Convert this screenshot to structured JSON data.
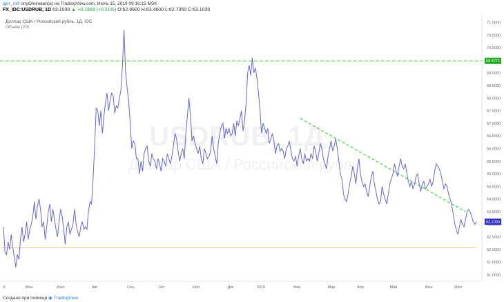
{
  "header": {
    "publisher": "igor_milf",
    "published_text": "опубликовал(а) на TradingView.com, Июль 15, 2019 09:16:15 MSK",
    "symbol": "FX_IDC:USDRUB, 1D",
    "price": "63.1030",
    "change": "▲ +0.1969 (+0.31%)",
    "ohlc": "O:62.9900 H:63.4600 L:62.7350 C:63.1030",
    "instrument_name": "Доллар США / Российский рубль, 1Д, IDC",
    "volume_label": "Объём (20)"
  },
  "watermark": {
    "line1": "USDRUB, 1Д",
    "line2": "Доллар США / Российский рубль"
  },
  "footer": {
    "created_with": "Создано при помощи",
    "brand": "TradingView"
  },
  "colors": {
    "price_line": "#6666cc",
    "resistance": "#22cc22",
    "trend": "#33dd33",
    "support": "#f0c068",
    "last_badge": "#3030c0",
    "res_badge": "#22aa22"
  },
  "chart_data": {
    "type": "line",
    "title": "Доллар США / Российский рубль, 1Д, IDC",
    "x_ticks": [
      "9",
      "Июн",
      "Июл",
      "Авг",
      "Сен",
      "Окт",
      "Ноя",
      "Дек",
      "2019",
      "Фев",
      "Мар",
      "Апр",
      "Май",
      "Июн",
      "Июл"
    ],
    "y_ticks": [
      "61.0000",
      "61.5000",
      "62.0000",
      "62.5000",
      "63.0000",
      "63.5000",
      "64.0000",
      "64.5000",
      "65.0000",
      "65.5000",
      "66.0000",
      "66.5000",
      "67.0000",
      "67.5000",
      "68.0000",
      "68.5000",
      "69.0000",
      "69.5000",
      "70.0000",
      "70.5000",
      "71.0000"
    ],
    "ylim": [
      60.75,
      71.25
    ],
    "grid": false,
    "series": [
      {
        "values": [
          62.9,
          61.9,
          61.8,
          62.3,
          62.0,
          62.6,
          62.1,
          61.7,
          61.3,
          61.8,
          61.6,
          62.4,
          62.9,
          62.3,
          62.6,
          63.1,
          62.4,
          62.8,
          63.0,
          63.3,
          63.9,
          63.2,
          63.7,
          64.0,
          63.6,
          62.9,
          63.1,
          62.4,
          62.9,
          63.5,
          63.8,
          63.1,
          63.6,
          63.2,
          62.8,
          62.5,
          63.1,
          63.6,
          63.3,
          62.8,
          62.2,
          62.9,
          63.1,
          62.6,
          62.8,
          63.0,
          63.6,
          63.0,
          62.7,
          62.5,
          62.9,
          63.1,
          62.8,
          62.9,
          62.8,
          63.5,
          63.9,
          63.8,
          64.8,
          66.1,
          67.6,
          67.5,
          66.9,
          67.5,
          66.6,
          67.3,
          67.8,
          68.2,
          67.5,
          67.9,
          68.2,
          68.1,
          67.4,
          67.7,
          67.6,
          68.0,
          68.3,
          69.3,
          70.7,
          69.1,
          68.4,
          67.9,
          67.0,
          66.0,
          66.3,
          66.2,
          65.6,
          65.6,
          65.0,
          65.5,
          65.1,
          65.8,
          66.0,
          66.1,
          65.5,
          65.3,
          65.8,
          65.6,
          65.5,
          65.2,
          65.6,
          65.4,
          65.1,
          65.6,
          65.5,
          65.3,
          65.8,
          65.6,
          65.4,
          65.7,
          66.1,
          66.6,
          66.4,
          65.9,
          65.5,
          65.8,
          66.0,
          65.6,
          66.6,
          67.3,
          68.0,
          67.3,
          66.3,
          66.5,
          66.2,
          66.0,
          65.8,
          66.1,
          65.6,
          65.4,
          66.0,
          65.8,
          65.6,
          65.7,
          65.9,
          66.5,
          66.0,
          65.7,
          65.4,
          66.2,
          66.6,
          66.9,
          67.0,
          66.4,
          66.8,
          66.6,
          66.8,
          66.5,
          66.6,
          67.0,
          66.5,
          67.1,
          66.9,
          67.2,
          67.5,
          66.7,
          67.1,
          67.8,
          69.0,
          69.3,
          68.9,
          69.6,
          69.0,
          69.2,
          68.8,
          68.2,
          67.5,
          66.6,
          67.0,
          66.8,
          66.6,
          66.8,
          66.2,
          66.4,
          66.6,
          66.3,
          65.8,
          66.1,
          66.2,
          65.9,
          66.0,
          65.9,
          65.6,
          66.0,
          66.1,
          66.3,
          65.9,
          65.6,
          65.5,
          65.7,
          65.3,
          65.7,
          66.0,
          65.6,
          65.4,
          65.8,
          65.5,
          65.6,
          65.5,
          65.8,
          65.6,
          66.1,
          65.9,
          65.5,
          65.8,
          66.2,
          66.0,
          65.6,
          65.4,
          65.2,
          65.7,
          66.0,
          66.3,
          65.9,
          66.1,
          66.4,
          66.0,
          65.5,
          65.0,
          64.8,
          64.2,
          64.0,
          63.9,
          64.2,
          64.6,
          64.9,
          65.3,
          65.0,
          64.6,
          65.2,
          65.6,
          65.0,
          64.7,
          64.5,
          64.6,
          64.3,
          64.1,
          64.5,
          64.9,
          65.1,
          64.6,
          64.3,
          64.0,
          63.8,
          63.9,
          64.5,
          64.2,
          64.0,
          63.8,
          64.2,
          64.6,
          64.8,
          65.0,
          65.4,
          65.1,
          64.9,
          65.3,
          65.6,
          65.3,
          65.2,
          65.4,
          65.0,
          64.7,
          64.5,
          64.7,
          64.4,
          64.6,
          64.9,
          65.0,
          64.6,
          64.3,
          64.6,
          64.7,
          64.4,
          64.5,
          64.6,
          64.8,
          64.5,
          64.7,
          65.1,
          65.4,
          65.3,
          65.2,
          65.0,
          64.7,
          64.4,
          64.6,
          64.5,
          64.2,
          64.0,
          63.8,
          63.4,
          63.0,
          62.8,
          62.6,
          62.9,
          63.2,
          63.0,
          62.9,
          63.2,
          63.5,
          63.6,
          63.5,
          63.3,
          63.1,
          63.0,
          63.1
        ]
      }
    ],
    "annotations": {
      "resistance_level": "69.4771",
      "last_price": "63.1030",
      "support_level": 62.07,
      "trend_line": {
        "from_index": 192,
        "from_value": 67.2,
        "to_index": 299,
        "to_value": 63.5
      }
    }
  }
}
